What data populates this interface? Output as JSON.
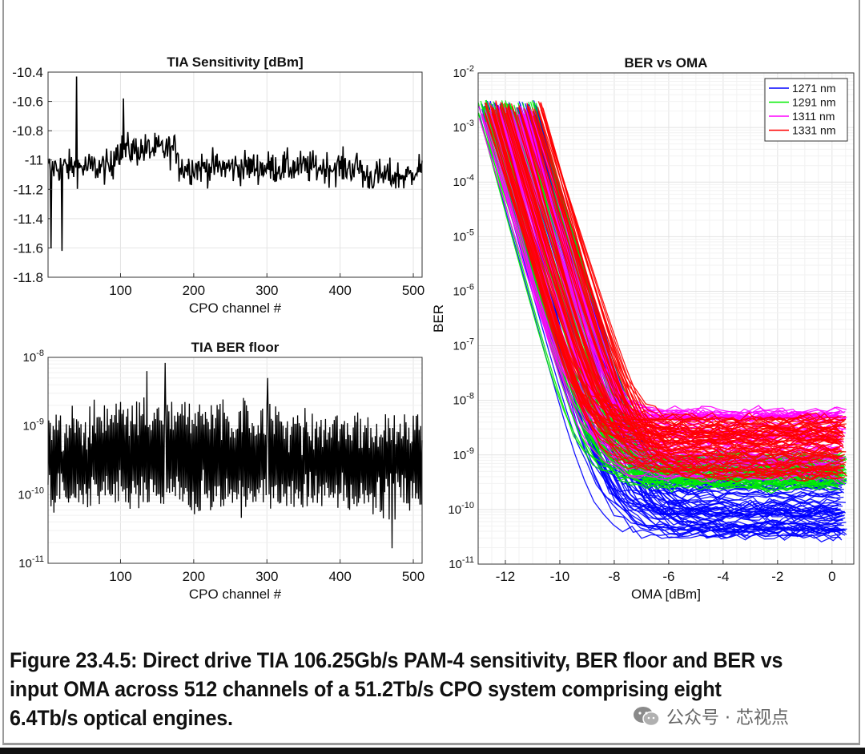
{
  "chart_data": [
    {
      "type": "line",
      "title": "TIA Sensitivity [dBm]",
      "xlabel": "CPO channel #",
      "ylabel": "",
      "xlim": [
        1,
        512
      ],
      "ylim": [
        -11.8,
        -10.4
      ],
      "x_ticks": [
        100,
        200,
        300,
        400,
        500
      ],
      "y_ticks": [
        -10.4,
        -10.6,
        -10.8,
        -11,
        -11.2,
        -11.4,
        -11.6,
        -11.8
      ],
      "y_tick_labels": [
        "-10.4",
        "-10.6",
        "-10.8",
        "-11",
        "-11.2",
        "-11.4",
        "-11.6",
        "-11.8"
      ],
      "grid": true,
      "series": [
        {
          "color": "#000000",
          "x_range": [
            1,
            512
          ],
          "mean": -11.05,
          "spread": 0.12,
          "notable_points": [
            {
              "x": 40,
              "y": -10.43
            },
            {
              "x": 104,
              "y": -10.58
            },
            {
              "x": 5,
              "y": -11.6
            },
            {
              "x": 20,
              "y": -11.62
            }
          ]
        }
      ]
    },
    {
      "type": "line",
      "title": "TIA BER floor",
      "xlabel": "CPO channel #",
      "ylabel": "",
      "xlim": [
        1,
        512
      ],
      "ylim": [
        1e-11,
        1e-08
      ],
      "yscale": "log",
      "x_ticks": [
        100,
        200,
        300,
        400,
        500
      ],
      "y_ticks": [
        {
          "base": "10",
          "exp": "-8"
        },
        {
          "base": "10",
          "exp": "-9"
        },
        {
          "base": "10",
          "exp": "-10"
        },
        {
          "base": "10",
          "exp": "-11"
        }
      ],
      "grid": true,
      "series": [
        {
          "color": "#000000",
          "x_range": [
            1,
            512
          ],
          "log10_range": [
            -10.8,
            -8.1
          ]
        }
      ]
    },
    {
      "type": "line",
      "title": "BER vs OMA",
      "xlabel": "OMA [dBm]",
      "ylabel": "BER",
      "xlim": [
        -13,
        0.8
      ],
      "ylim": [
        1e-11,
        0.01
      ],
      "yscale": "log",
      "x_ticks": [
        -12,
        -10,
        -8,
        -6,
        -4,
        -2,
        0
      ],
      "y_ticks": [
        {
          "base": "10",
          "exp": "-2"
        },
        {
          "base": "10",
          "exp": "-3"
        },
        {
          "base": "10",
          "exp": "-4"
        },
        {
          "base": "10",
          "exp": "-5"
        },
        {
          "base": "10",
          "exp": "-6"
        },
        {
          "base": "10",
          "exp": "-7"
        },
        {
          "base": "10",
          "exp": "-8"
        },
        {
          "base": "10",
          "exp": "-9"
        },
        {
          "base": "10",
          "exp": "-10"
        },
        {
          "base": "10",
          "exp": "-11"
        }
      ],
      "grid": true,
      "legend": "top-right",
      "series": [
        {
          "name": "1271 nm",
          "color": "#0000ff",
          "curves": 70,
          "start_x": [
            -13,
            -10.8
          ],
          "start_log10_ber": [
            -2.5,
            -2.8
          ],
          "floor_log10_ber": [
            -10.5,
            -9.4
          ]
        },
        {
          "name": "1291 nm",
          "color": "#00ee00",
          "curves": 70,
          "start_x": [
            -13,
            -10.8
          ],
          "start_log10_ber": [
            -2.5,
            -2.8
          ],
          "floor_log10_ber": [
            -9.6,
            -9.0
          ]
        },
        {
          "name": "1311 nm",
          "color": "#ff00ff",
          "curves": 60,
          "start_x": [
            -13,
            -11
          ],
          "start_log10_ber": [
            -2.6,
            -2.9
          ],
          "floor_log10_ber": [
            -9.4,
            -8.2
          ]
        },
        {
          "name": "1331 nm",
          "color": "#ff0000",
          "curves": 70,
          "start_x": [
            -12.8,
            -10.6
          ],
          "start_log10_ber": [
            -2.5,
            -2.8
          ],
          "floor_log10_ber": [
            -9.4,
            -8.3
          ]
        }
      ]
    }
  ],
  "caption": "Figure 23.4.5: Direct drive TIA 106.25Gb/s PAM-4 sensitivity, BER floor and BER vs input OMA across 512 channels of a 51.2Tb/s CPO system comprising eight 6.4Tb/s optical engines.",
  "watermark": {
    "text": "公众号 · 芯视点",
    "icon": "wechat-icon"
  }
}
